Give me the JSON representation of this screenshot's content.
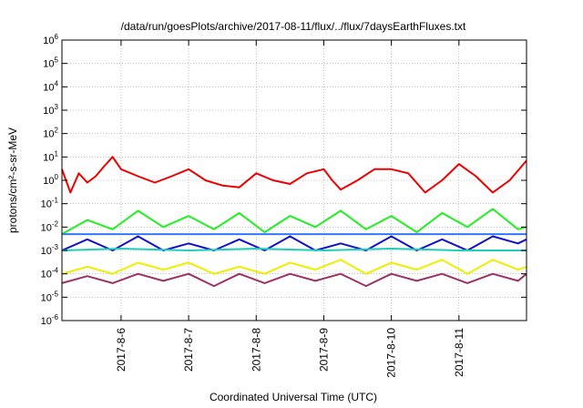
{
  "chart_data": {
    "type": "line",
    "title": "/data/run/goesPlots/archive/2017-08-11/flux/../flux/7daysEarthFluxes.txt",
    "xlabel": "Coordinated Universal Time (UTC)",
    "ylabel": "protons/cm²-s-sr-MeV",
    "y_scale": "log",
    "ylim": [
      1e-06,
      1000000.0
    ],
    "y_ticks": [
      {
        "value": 1e-06,
        "base": "10",
        "exp": "-6"
      },
      {
        "value": 1e-05,
        "base": "10",
        "exp": "-5"
      },
      {
        "value": 0.0001,
        "base": "10",
        "exp": "-4"
      },
      {
        "value": 0.001,
        "base": "10",
        "exp": "-3"
      },
      {
        "value": 0.01,
        "base": "10",
        "exp": "-2"
      },
      {
        "value": 0.1,
        "base": "10",
        "exp": "-1"
      },
      {
        "value": 1.0,
        "base": "10",
        "exp": "0"
      },
      {
        "value": 10.0,
        "base": "10",
        "exp": "1"
      },
      {
        "value": 100.0,
        "base": "10",
        "exp": "2"
      },
      {
        "value": 1000.0,
        "base": "10",
        "exp": "3"
      },
      {
        "value": 10000.0,
        "base": "10",
        "exp": "4"
      },
      {
        "value": 100000.0,
        "base": "10",
        "exp": "5"
      },
      {
        "value": 1000000.0,
        "base": "10",
        "exp": "6"
      }
    ],
    "xlim": [
      "2017-08-05T03:00",
      "2017-08-12T00:00"
    ],
    "x_ticks": [
      {
        "value": "2017-08-06T00:00",
        "label": "2017-8-6"
      },
      {
        "value": "2017-08-07T00:00",
        "label": "2017-8-7"
      },
      {
        "value": "2017-08-08T00:00",
        "label": "2017-8-8"
      },
      {
        "value": "2017-08-09T00:00",
        "label": "2017-8-9"
      },
      {
        "value": "2017-08-10T00:00",
        "label": "2017-8-10"
      },
      {
        "value": "2017-08-11T00:00",
        "label": "2017-8-11"
      }
    ],
    "grid": true,
    "legend": "none",
    "series": [
      {
        "color": "#ee0000",
        "x": [
          "2017-08-05T03:00",
          "2017-08-05T06:00",
          "2017-08-05T09:00",
          "2017-08-05T12:00",
          "2017-08-05T15:00",
          "2017-08-05T18:00",
          "2017-08-05T21:00",
          "2017-08-06T00:00",
          "2017-08-06T06:00",
          "2017-08-06T12:00",
          "2017-08-06T18:00",
          "2017-08-07T00:00",
          "2017-08-07T06:00",
          "2017-08-07T12:00",
          "2017-08-07T18:00",
          "2017-08-08T00:00",
          "2017-08-08T06:00",
          "2017-08-08T12:00",
          "2017-08-08T18:00",
          "2017-08-09T00:00",
          "2017-08-09T03:00",
          "2017-08-09T06:00",
          "2017-08-09T12:00",
          "2017-08-09T18:00",
          "2017-08-10T00:00",
          "2017-08-10T06:00",
          "2017-08-10T12:00",
          "2017-08-10T18:00",
          "2017-08-11T00:00",
          "2017-08-11T06:00",
          "2017-08-11T12:00",
          "2017-08-11T18:00",
          "2017-08-12T00:00"
        ],
        "values": [
          3.0,
          0.3,
          2.0,
          0.8,
          1.5,
          4.0,
          10.0,
          3.0,
          1.5,
          0.8,
          1.5,
          3.0,
          1.0,
          0.6,
          0.5,
          2.0,
          1.0,
          0.7,
          2.0,
          3.0,
          1.0,
          0.4,
          1.0,
          3.0,
          3.0,
          2.0,
          0.3,
          1.0,
          5.0,
          1.5,
          0.3,
          1.0,
          7.0
        ]
      },
      {
        "color": "#22ee22",
        "x": [
          "2017-08-05T03:00",
          "2017-08-05T12:00",
          "2017-08-05T21:00",
          "2017-08-06T06:00",
          "2017-08-06T15:00",
          "2017-08-07T00:00",
          "2017-08-07T09:00",
          "2017-08-07T18:00",
          "2017-08-08T03:00",
          "2017-08-08T12:00",
          "2017-08-08T21:00",
          "2017-08-09T06:00",
          "2017-08-09T15:00",
          "2017-08-10T00:00",
          "2017-08-10T09:00",
          "2017-08-10T18:00",
          "2017-08-11T03:00",
          "2017-08-11T12:00",
          "2017-08-11T21:00",
          "2017-08-12T00:00"
        ],
        "values": [
          0.005,
          0.02,
          0.008,
          0.05,
          0.01,
          0.03,
          0.008,
          0.04,
          0.006,
          0.03,
          0.01,
          0.05,
          0.008,
          0.03,
          0.006,
          0.04,
          0.01,
          0.06,
          0.008,
          0.01
        ]
      },
      {
        "color": "#3377ff",
        "x": [
          "2017-08-05T03:00",
          "2017-08-06T00:00",
          "2017-08-07T00:00",
          "2017-08-08T00:00",
          "2017-08-09T00:00",
          "2017-08-10T00:00",
          "2017-08-11T00:00",
          "2017-08-12T00:00"
        ],
        "values": [
          0.005,
          0.005,
          0.005,
          0.005,
          0.005,
          0.005,
          0.005,
          0.005
        ]
      },
      {
        "color": "#1111cc",
        "x": [
          "2017-08-05T03:00",
          "2017-08-05T12:00",
          "2017-08-05T21:00",
          "2017-08-06T06:00",
          "2017-08-06T15:00",
          "2017-08-07T00:00",
          "2017-08-07T09:00",
          "2017-08-07T18:00",
          "2017-08-08T03:00",
          "2017-08-08T12:00",
          "2017-08-08T21:00",
          "2017-08-09T06:00",
          "2017-08-09T15:00",
          "2017-08-10T00:00",
          "2017-08-10T09:00",
          "2017-08-10T18:00",
          "2017-08-11T03:00",
          "2017-08-11T12:00",
          "2017-08-11T21:00",
          "2017-08-12T00:00"
        ],
        "values": [
          0.001,
          0.003,
          0.001,
          0.004,
          0.001,
          0.002,
          0.001,
          0.003,
          0.001,
          0.004,
          0.001,
          0.002,
          0.001,
          0.004,
          0.001,
          0.003,
          0.001,
          0.004,
          0.002,
          0.003
        ]
      },
      {
        "color": "#22ccbb",
        "x": [
          "2017-08-05T03:00",
          "2017-08-06T00:00",
          "2017-08-07T00:00",
          "2017-08-08T00:00",
          "2017-08-09T00:00",
          "2017-08-10T00:00",
          "2017-08-11T00:00",
          "2017-08-12T00:00"
        ],
        "values": [
          0.001,
          0.0012,
          0.001,
          0.0012,
          0.001,
          0.0012,
          0.001,
          0.001
        ]
      },
      {
        "color": "#eeee00",
        "x": [
          "2017-08-05T03:00",
          "2017-08-05T12:00",
          "2017-08-05T21:00",
          "2017-08-06T06:00",
          "2017-08-06T15:00",
          "2017-08-07T00:00",
          "2017-08-07T09:00",
          "2017-08-07T18:00",
          "2017-08-08T03:00",
          "2017-08-08T12:00",
          "2017-08-08T21:00",
          "2017-08-09T06:00",
          "2017-08-09T15:00",
          "2017-08-10T00:00",
          "2017-08-10T09:00",
          "2017-08-10T18:00",
          "2017-08-11T03:00",
          "2017-08-11T12:00",
          "2017-08-11T21:00",
          "2017-08-12T00:00"
        ],
        "values": [
          0.0001,
          0.0002,
          0.0001,
          0.0003,
          0.00015,
          0.0003,
          0.0001,
          0.0002,
          0.0001,
          0.0003,
          0.00015,
          0.0004,
          0.0001,
          0.0003,
          0.00015,
          0.0004,
          0.0001,
          0.0004,
          0.00015,
          0.0002
        ]
      },
      {
        "color": "#993366",
        "x": [
          "2017-08-05T03:00",
          "2017-08-05T12:00",
          "2017-08-05T21:00",
          "2017-08-06T06:00",
          "2017-08-06T15:00",
          "2017-08-07T00:00",
          "2017-08-07T09:00",
          "2017-08-07T18:00",
          "2017-08-08T03:00",
          "2017-08-08T12:00",
          "2017-08-08T21:00",
          "2017-08-09T06:00",
          "2017-08-09T15:00",
          "2017-08-10T00:00",
          "2017-08-10T09:00",
          "2017-08-10T18:00",
          "2017-08-11T03:00",
          "2017-08-11T12:00",
          "2017-08-11T21:00",
          "2017-08-12T00:00"
        ],
        "values": [
          4e-05,
          8e-05,
          4e-05,
          0.0001,
          5e-05,
          0.0001,
          3e-05,
          0.0001,
          4e-05,
          0.0001,
          5e-05,
          0.0001,
          3e-05,
          0.0001,
          5e-05,
          0.0001,
          4e-05,
          0.0001,
          5e-05,
          0.0001
        ]
      }
    ]
  }
}
